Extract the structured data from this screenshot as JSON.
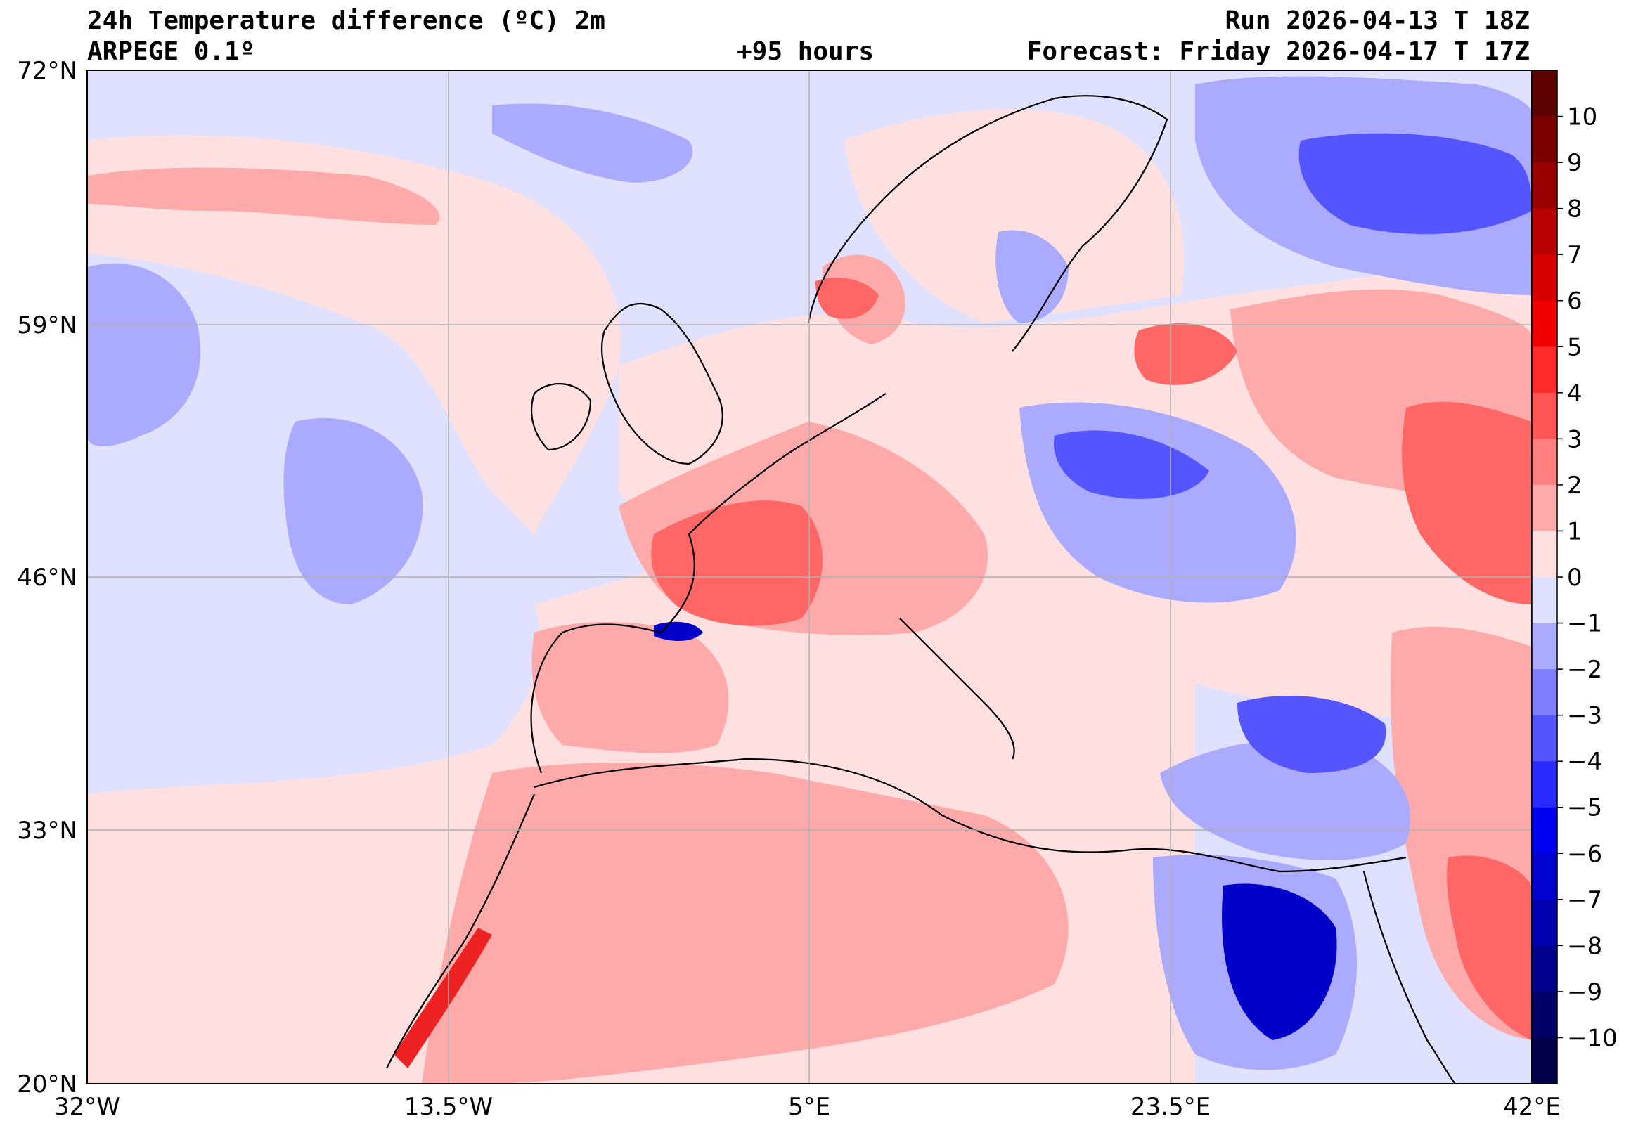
{
  "header": {
    "title": "24h Temperature difference (ºC) 2m",
    "model": "ARPEGE 0.1º",
    "lead_time": "+95 hours",
    "run": "Run 2026-04-13 T 18Z",
    "forecast": "Forecast: Friday 2026-04-17 T 17Z"
  },
  "axes": {
    "lat_labels": [
      "72°N",
      "59°N",
      "46°N",
      "33°N",
      "20°N"
    ],
    "lon_labels": [
      "32°W",
      "13.5°W",
      "5°E",
      "23.5°E",
      "42°E"
    ]
  },
  "colorbar": {
    "ticks": [
      "10",
      "9",
      "8",
      "7",
      "6",
      "5",
      "4",
      "3",
      "2",
      "1",
      "0",
      "−1",
      "−2",
      "−3",
      "−4",
      "−5",
      "−6",
      "−7",
      "−8",
      "−9",
      "−10"
    ],
    "colors": [
      "#5c0000",
      "#7a0000",
      "#990000",
      "#b80000",
      "#d60000",
      "#f00000",
      "#ff2a2a",
      "#ff5555",
      "#ff8080",
      "#ffaaaa",
      "#ffe0e0",
      "#e0e0ff",
      "#aaaaff",
      "#8080ff",
      "#5555ff",
      "#2a2aff",
      "#0000f0",
      "#0000d0",
      "#0000b0",
      "#00008c",
      "#000066",
      "#00004a"
    ]
  },
  "colors": {
    "sea_neg": "#e0e0ff",
    "pos_light": "#ffe0e0",
    "pos_mid": "#ffaaaa",
    "pos_strong": "#ff6666",
    "pos_hot": "#ee2222",
    "neg_mid": "#aaaaff",
    "neg_strong": "#5555ff",
    "neg_deep": "#0000c8"
  }
}
